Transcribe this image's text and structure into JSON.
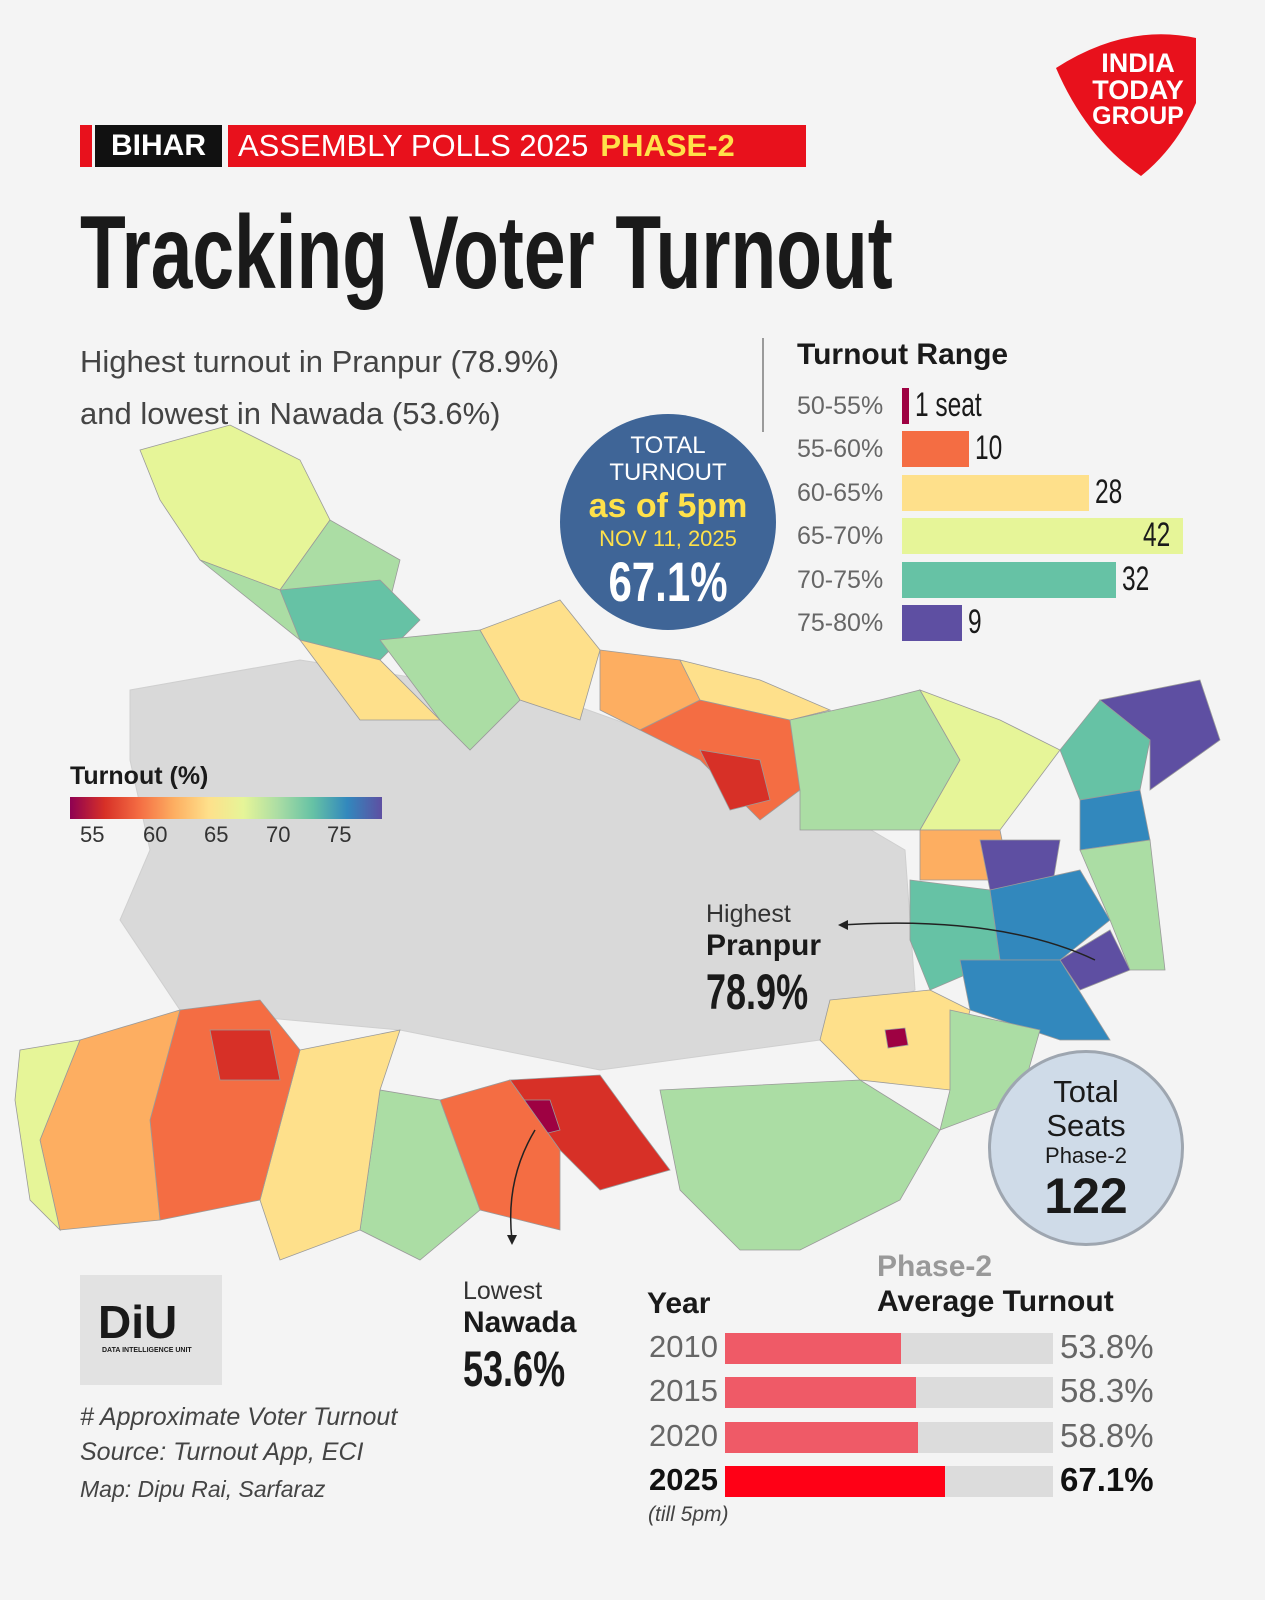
{
  "banner": {
    "state": "BIHAR",
    "main": "ASSEMBLY POLLS 2025",
    "phase": "PHASE-2"
  },
  "logo": {
    "line1": "INDIA",
    "line2": "TODAY",
    "line3": "GROUP"
  },
  "title": "Tracking Voter Turnout",
  "subtitle": {
    "line1": "Highest turnout in Pranpur (78.9%)",
    "line2": "and lowest in Nawada (53.6%)"
  },
  "total_turnout": {
    "l1": "TOTAL",
    "l2": "TURNOUT",
    "l3": "as of 5pm",
    "l4": "NOV 11, 2025",
    "value": "67.1%"
  },
  "legend": {
    "title": "Turnout (%)",
    "ticks": [
      "55",
      "60",
      "65",
      "70",
      "75"
    ]
  },
  "highest": {
    "label": "Highest",
    "name": "Pranpur",
    "value": "78.9%"
  },
  "lowest": {
    "label": "Lowest",
    "name": "Nawada",
    "value": "53.6%"
  },
  "total_seats": {
    "l1": "Total",
    "l2": "Seats",
    "l3": "Phase-2",
    "value": "122"
  },
  "diu": {
    "text": "DiU",
    "sub": "DATA INTELLIGENCE UNIT"
  },
  "footnotes": [
    "# Approximate Voter Turnout",
    "Source: Turnout App, ECI",
    "Map: Dipu Rai, Sarfaraz"
  ],
  "chart_data": [
    {
      "type": "bar",
      "title": "Turnout Range",
      "categories": [
        "50-55%",
        "55-60%",
        "60-65%",
        "65-70%",
        "70-75%",
        "75-80%"
      ],
      "values": [
        1,
        10,
        28,
        42,
        32,
        9
      ],
      "data_labels": [
        "1 seat",
        "10",
        "28",
        "42",
        "32",
        "9"
      ],
      "colors": [
        "#9e0142",
        "#f46d43",
        "#fee08b",
        "#e6f598",
        "#66c2a5",
        "#5e4fa2"
      ]
    },
    {
      "type": "bar",
      "title": "Phase-2",
      "subtitle": "Average Turnout",
      "xlabel": "Year",
      "categories": [
        "2010",
        "2015",
        "2020",
        "2025"
      ],
      "category_note": "(till 5pm)",
      "values": [
        53.8,
        58.3,
        58.8,
        67.1
      ],
      "data_labels": [
        "53.8%",
        "58.3%",
        "58.8%",
        "67.1%"
      ],
      "xlim": [
        0,
        100
      ],
      "colors": [
        "#ef5a67",
        "#ef5a67",
        "#ef5a67",
        "#ff0016"
      ]
    }
  ]
}
